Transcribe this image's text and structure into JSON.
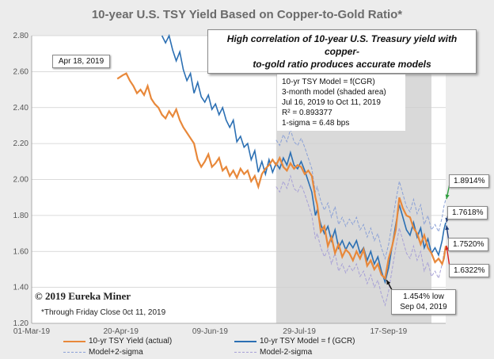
{
  "chart_data": {
    "type": "line",
    "title": "10-year U.S. TSY Yield Based on Copper-to-Gold Ratio*",
    "x_ticks": [
      "01-Mar-19",
      "20-Apr-19",
      "09-Jun-19",
      "29-Jul-19",
      "17-Sep-19"
    ],
    "y_ticks": [
      "1.20",
      "1.40",
      "1.60",
      "1.80",
      "2.00",
      "2.20",
      "2.40",
      "2.60",
      "2.80"
    ],
    "ylim": [
      1.2,
      2.8
    ],
    "x_range_days": [
      0,
      232
    ],
    "shaded_range_days": [
      137,
      224
    ],
    "series": [
      {
        "name": "10-yr TSY Yield (actual)",
        "color": "#e8883a",
        "points": [
          [
            48,
            2.56
          ],
          [
            51,
            2.58
          ],
          [
            53,
            2.59
          ],
          [
            55,
            2.55
          ],
          [
            57,
            2.52
          ],
          [
            59,
            2.48
          ],
          [
            61,
            2.5
          ],
          [
            63,
            2.47
          ],
          [
            65,
            2.52
          ],
          [
            67,
            2.45
          ],
          [
            69,
            2.42
          ],
          [
            71,
            2.4
          ],
          [
            73,
            2.36
          ],
          [
            75,
            2.34
          ],
          [
            77,
            2.38
          ],
          [
            79,
            2.35
          ],
          [
            81,
            2.39
          ],
          [
            83,
            2.33
          ],
          [
            85,
            2.29
          ],
          [
            87,
            2.26
          ],
          [
            89,
            2.23
          ],
          [
            91,
            2.2
          ],
          [
            93,
            2.11
          ],
          [
            95,
            2.07
          ],
          [
            97,
            2.1
          ],
          [
            99,
            2.14
          ],
          [
            101,
            2.07
          ],
          [
            103,
            2.09
          ],
          [
            105,
            2.12
          ],
          [
            107,
            2.05
          ],
          [
            109,
            2.07
          ],
          [
            111,
            2.02
          ],
          [
            113,
            2.05
          ],
          [
            115,
            2.01
          ],
          [
            117,
            2.06
          ],
          [
            119,
            2.03
          ],
          [
            121,
            2.05
          ],
          [
            123,
            1.99
          ],
          [
            125,
            2.02
          ],
          [
            127,
            1.96
          ],
          [
            129,
            2.03
          ],
          [
            131,
            2.06
          ],
          [
            133,
            2.08
          ],
          [
            135,
            2.11
          ],
          [
            137,
            2.08
          ],
          [
            139,
            2.12
          ],
          [
            141,
            2.07
          ],
          [
            143,
            2.05
          ],
          [
            145,
            2.09
          ],
          [
            147,
            2.06
          ],
          [
            149,
            2.08
          ],
          [
            151,
            2.07
          ],
          [
            153,
            2.03
          ],
          [
            155,
            2.05
          ],
          [
            157,
            2.02
          ],
          [
            159,
            1.9
          ],
          [
            160,
            1.86
          ],
          [
            162,
            1.71
          ],
          [
            164,
            1.74
          ],
          [
            166,
            1.63
          ],
          [
            168,
            1.68
          ],
          [
            170,
            1.59
          ],
          [
            172,
            1.64
          ],
          [
            174,
            1.57
          ],
          [
            176,
            1.61
          ],
          [
            178,
            1.59
          ],
          [
            180,
            1.55
          ],
          [
            182,
            1.6
          ],
          [
            184,
            1.56
          ],
          [
            186,
            1.61
          ],
          [
            188,
            1.52
          ],
          [
            190,
            1.55
          ],
          [
            192,
            1.5
          ],
          [
            194,
            1.53
          ],
          [
            196,
            1.47
          ],
          [
            198,
            1.45
          ],
          [
            200,
            1.56
          ],
          [
            202,
            1.63
          ],
          [
            204,
            1.72
          ],
          [
            206,
            1.9
          ],
          [
            208,
            1.84
          ],
          [
            210,
            1.8
          ],
          [
            212,
            1.79
          ],
          [
            214,
            1.73
          ],
          [
            216,
            1.7
          ],
          [
            218,
            1.64
          ],
          [
            220,
            1.69
          ],
          [
            222,
            1.62
          ],
          [
            224,
            1.59
          ],
          [
            226,
            1.54
          ],
          [
            228,
            1.56
          ],
          [
            230,
            1.53
          ],
          [
            231,
            1.56
          ],
          [
            232,
            1.63
          ]
        ]
      },
      {
        "name": "10-yr TSY Model = f (GCR)",
        "color": "#2b6fb3",
        "points": [
          [
            73,
            2.8
          ],
          [
            75,
            2.76
          ],
          [
            77,
            2.8
          ],
          [
            79,
            2.72
          ],
          [
            81,
            2.66
          ],
          [
            83,
            2.71
          ],
          [
            85,
            2.61
          ],
          [
            87,
            2.55
          ],
          [
            89,
            2.59
          ],
          [
            91,
            2.48
          ],
          [
            93,
            2.54
          ],
          [
            95,
            2.46
          ],
          [
            97,
            2.43
          ],
          [
            99,
            2.47
          ],
          [
            101,
            2.39
          ],
          [
            103,
            2.42
          ],
          [
            105,
            2.36
          ],
          [
            107,
            2.4
          ],
          [
            109,
            2.33
          ],
          [
            111,
            2.29
          ],
          [
            113,
            2.33
          ],
          [
            115,
            2.21
          ],
          [
            117,
            2.24
          ],
          [
            119,
            2.18
          ],
          [
            121,
            2.2
          ],
          [
            123,
            2.11
          ],
          [
            125,
            2.16
          ],
          [
            127,
            2.04
          ],
          [
            129,
            2.1
          ],
          [
            131,
            2.03
          ],
          [
            133,
            2.11
          ],
          [
            135,
            2.04
          ],
          [
            137,
            2.09
          ],
          [
            139,
            2.06
          ],
          [
            141,
            2.12
          ],
          [
            143,
            2.08
          ],
          [
            145,
            2.15
          ],
          [
            147,
            2.08
          ],
          [
            149,
            2.06
          ],
          [
            151,
            2.1
          ],
          [
            153,
            2.05
          ],
          [
            155,
            1.99
          ],
          [
            157,
            1.93
          ],
          [
            159,
            1.8
          ],
          [
            160,
            1.83
          ],
          [
            162,
            1.75
          ],
          [
            164,
            1.7
          ],
          [
            166,
            1.74
          ],
          [
            168,
            1.66
          ],
          [
            170,
            1.72
          ],
          [
            172,
            1.62
          ],
          [
            174,
            1.66
          ],
          [
            176,
            1.61
          ],
          [
            178,
            1.65
          ],
          [
            180,
            1.62
          ],
          [
            182,
            1.66
          ],
          [
            184,
            1.59
          ],
          [
            186,
            1.62
          ],
          [
            188,
            1.55
          ],
          [
            190,
            1.6
          ],
          [
            192,
            1.53
          ],
          [
            194,
            1.57
          ],
          [
            196,
            1.49
          ],
          [
            198,
            1.43
          ],
          [
            200,
            1.51
          ],
          [
            202,
            1.63
          ],
          [
            204,
            1.75
          ],
          [
            206,
            1.86
          ],
          [
            208,
            1.79
          ],
          [
            210,
            1.72
          ],
          [
            212,
            1.69
          ],
          [
            214,
            1.76
          ],
          [
            216,
            1.68
          ],
          [
            218,
            1.73
          ],
          [
            220,
            1.62
          ],
          [
            222,
            1.67
          ],
          [
            224,
            1.59
          ],
          [
            226,
            1.62
          ],
          [
            228,
            1.58
          ],
          [
            230,
            1.66
          ],
          [
            231,
            1.72
          ],
          [
            232,
            1.76
          ]
        ]
      }
    ],
    "legend": {
      "actual": "10-yr TSY Yield (actual)",
      "model": "10-yr TSY Model = f (GCR)",
      "plus2": "Model+2-sigma",
      "minus2": "Model-2-sigma"
    }
  },
  "annotations": {
    "headline_line1": "High correlation of 10-year U.S. Treasury yield with copper-",
    "headline_line2": "to-gold ratio produces accurate models",
    "date": "Apr 18, 2019",
    "model_lines": [
      "10-yr TSY Model = f(CGR)",
      "3-month model (shaded area)",
      "Jul 16, 2019 to Oct 11, 2019",
      "R² = 0.893377",
      "1-sigma = 6.48 bps"
    ],
    "plus2_value": "1.8914%",
    "model_value": "1.7618%",
    "prev_value": "1.7520%",
    "actual_value": "1.6322%",
    "low_line1": "1.454% low",
    "low_line2": "Sep 04, 2019",
    "copyright": "© 2019 Eureka Miner",
    "footnote": "*Through Friday Close 0ct 11, 2019"
  },
  "colors": {
    "actual": "#e8883a",
    "model": "#2b6fb3",
    "plus2": "#8aa0d6",
    "minus2": "#a7a0d6",
    "shade": "#d9d9d9",
    "green": "#2e9e3e",
    "red": "#d42020",
    "navy": "#1f3d7a"
  }
}
